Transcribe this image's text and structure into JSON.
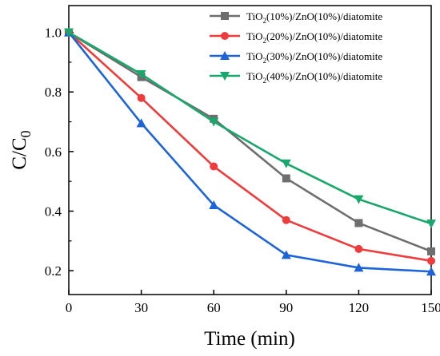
{
  "chart_data": {
    "type": "line",
    "xlabel": "Time (min)",
    "ylabel_main": "C/C",
    "ylabel_sub": "0",
    "x": [
      0,
      30,
      60,
      90,
      120,
      150
    ],
    "xlim": [
      0,
      150
    ],
    "ylim": [
      0.12,
      1.09
    ],
    "x_ticks": [
      "0",
      "30",
      "60",
      "90",
      "120",
      "150"
    ],
    "x_tick_values": [
      0,
      30,
      60,
      90,
      120,
      150
    ],
    "y_ticks": [
      "0.2",
      "0.4",
      "0.6",
      "0.8",
      "1.0"
    ],
    "y_tick_values": [
      0.2,
      0.4,
      0.6,
      0.8,
      1.0
    ],
    "grid": false,
    "legend_position": "top-right",
    "series": [
      {
        "name_parts": [
          "TiO",
          "2",
          "(10%)/ZnO(10%)/diatomite"
        ],
        "color": "#6e6e6e",
        "marker": "square",
        "values": [
          1.0,
          0.85,
          0.71,
          0.51,
          0.36,
          0.265
        ]
      },
      {
        "name_parts": [
          "TiO",
          "2",
          "(20%)/ZnO(10%)/diatomite"
        ],
        "color": "#ee3b3b",
        "marker": "circle",
        "values": [
          1.0,
          0.78,
          0.55,
          0.37,
          0.273,
          0.233
        ]
      },
      {
        "name_parts": [
          "TiO",
          "2",
          "(30%)/ZnO(10%)/diatomite"
        ],
        "color": "#1c64d8",
        "marker": "triangle-up",
        "values": [
          1.0,
          0.695,
          0.42,
          0.253,
          0.21,
          0.197
        ]
      },
      {
        "name_parts": [
          "TiO",
          "2",
          "(40%)/ZnO(10%)/diatomite"
        ],
        "color": "#19a76b",
        "marker": "triangle-down",
        "values": [
          1.0,
          0.86,
          0.7,
          0.56,
          0.44,
          0.358
        ]
      }
    ]
  }
}
